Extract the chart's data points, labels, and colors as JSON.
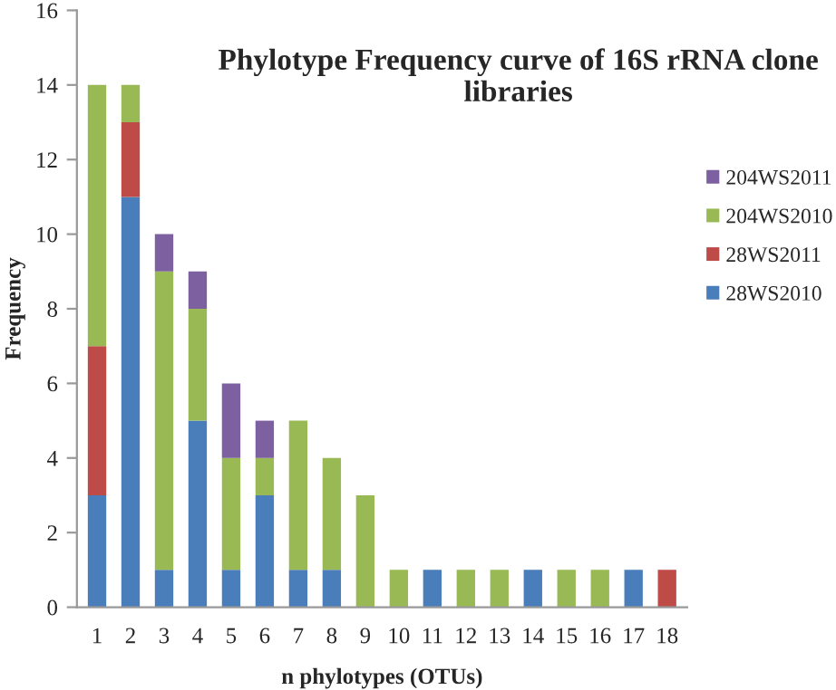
{
  "chart_data": {
    "type": "bar",
    "stacked": true,
    "title": "Phylotype Frequency curve of 16S rRNA clone libraries",
    "xlabel": "n phylotypes (OTUs)",
    "ylabel": "Frequency",
    "categories": [
      "1",
      "2",
      "3",
      "4",
      "5",
      "6",
      "7",
      "8",
      "9",
      "10",
      "11",
      "12",
      "13",
      "14",
      "15",
      "16",
      "17",
      "18"
    ],
    "series": [
      {
        "name": "28WS2010",
        "color": "#4a7ebb",
        "values": [
          3,
          11,
          1,
          5,
          1,
          3,
          1,
          1,
          null,
          null,
          1,
          null,
          null,
          1,
          null,
          null,
          1,
          null
        ]
      },
      {
        "name": "28WS2011",
        "color": "#be4b48",
        "values": [
          4,
          2,
          null,
          null,
          null,
          null,
          null,
          null,
          null,
          null,
          null,
          null,
          null,
          null,
          null,
          null,
          null,
          1
        ]
      },
      {
        "name": "204WS2010",
        "color": "#98b954",
        "values": [
          7,
          1,
          8,
          3,
          3,
          1,
          4,
          3,
          3,
          1,
          null,
          1,
          1,
          null,
          1,
          1,
          null,
          null
        ]
      },
      {
        "name": "204WS2011",
        "color": "#7d60a0",
        "values": [
          null,
          null,
          1,
          1,
          2,
          1,
          null,
          null,
          null,
          null,
          null,
          null,
          null,
          null,
          null,
          null,
          null,
          null
        ]
      }
    ],
    "ylim": [
      0,
      16
    ],
    "yticks": [
      0,
      2,
      4,
      6,
      8,
      10,
      12,
      14,
      16
    ],
    "grid": false,
    "legend": "right"
  }
}
